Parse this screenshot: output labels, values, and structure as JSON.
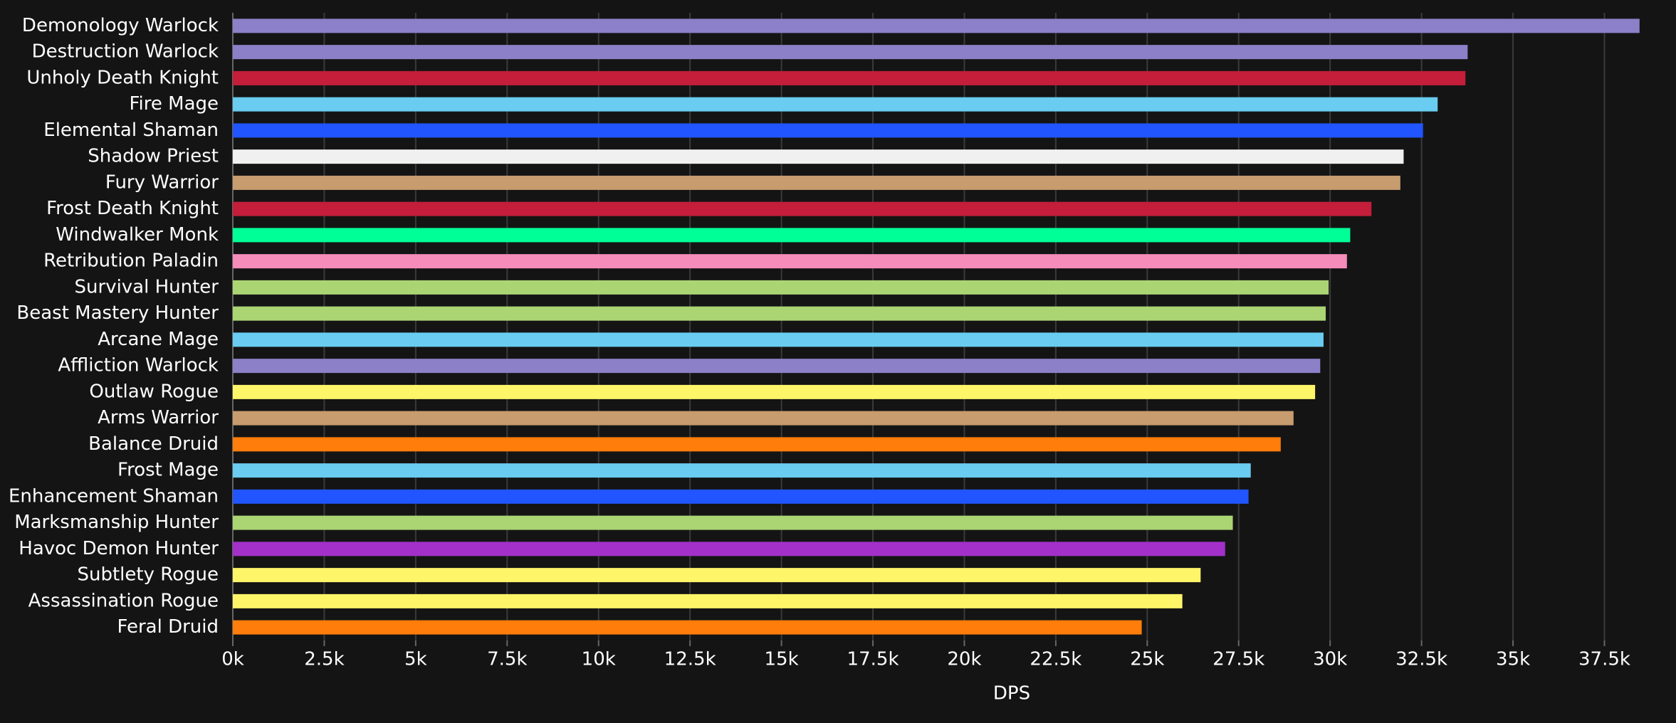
{
  "chart_data": {
    "type": "hbar",
    "categories": [
      "Demonology Warlock",
      "Destruction Warlock",
      "Unholy Death Knight",
      "Fire Mage",
      "Elemental Shaman",
      "Shadow Priest",
      "Fury Warrior",
      "Frost Death Knight",
      "Windwalker Monk",
      "Retribution Paladin",
      "Survival Hunter",
      "Beast Mastery Hunter",
      "Arcane Mage",
      "Affliction Warlock",
      "Outlaw Rogue",
      "Arms Warrior",
      "Balance Druid",
      "Frost Mage",
      "Enhancement Shaman",
      "Marksmanship Hunter",
      "Havoc Demon Hunter",
      "Subtlety Rogue",
      "Assassination Rogue",
      "Feral Druid"
    ],
    "values": [
      38460,
      33760,
      33700,
      32940,
      32540,
      32010,
      31920,
      31130,
      30550,
      30460,
      29960,
      29880,
      29820,
      29730,
      29590,
      29000,
      28650,
      27830,
      27770,
      27340,
      27130,
      26460,
      25960,
      24850
    ],
    "colors": [
      "#8c80c8",
      "#8c80c8",
      "#c41e3a",
      "#69ccf0",
      "#2055ff",
      "#f0f0f0",
      "#c79c6e",
      "#c41e3a",
      "#00ff96",
      "#f58cba",
      "#abd473",
      "#abd473",
      "#69ccf0",
      "#8c80c8",
      "#fff569",
      "#c79c6e",
      "#ff7d0a",
      "#69ccf0",
      "#2055ff",
      "#abd473",
      "#a330c9",
      "#fff569",
      "#fff569",
      "#ff7d0a"
    ],
    "x_label": "DPS",
    "xlim": [
      0,
      38600
    ],
    "xticks": [
      {
        "value": 0,
        "label": "0k"
      },
      {
        "value": 2500,
        "label": "2.5k"
      },
      {
        "value": 5000,
        "label": "5k"
      },
      {
        "value": 7500,
        "label": "7.5k"
      },
      {
        "value": 10000,
        "label": "10k"
      },
      {
        "value": 12500,
        "label": "12.5k"
      },
      {
        "value": 15000,
        "label": "15k"
      },
      {
        "value": 17500,
        "label": "17.5k"
      },
      {
        "value": 20000,
        "label": "20k"
      },
      {
        "value": 22500,
        "label": "22.5k"
      },
      {
        "value": 25000,
        "label": "25k"
      },
      {
        "value": 27500,
        "label": "27.5k"
      },
      {
        "value": 30000,
        "label": "30k"
      },
      {
        "value": 32500,
        "label": "32.5k"
      },
      {
        "value": 35000,
        "label": "35k"
      },
      {
        "value": 37500,
        "label": "37.5k"
      }
    ],
    "grid": true
  }
}
